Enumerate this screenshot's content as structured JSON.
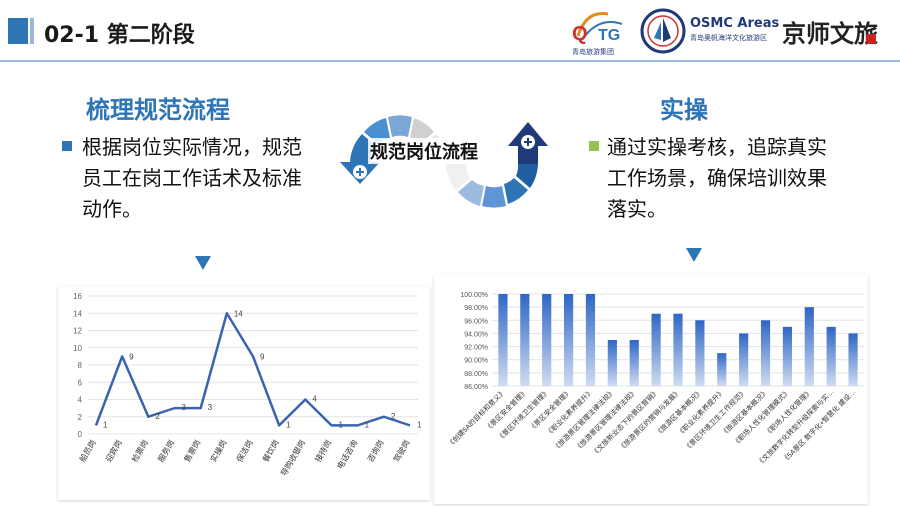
{
  "header": {
    "title": "02-1 第二阶段"
  },
  "logos": {
    "qtg_text": "青岛旅游集团",
    "osmc_title": "OSMC Areas",
    "osmc_sub": "青岛奥帆海洋文化旅游区",
    "jingshi": "京师文旅"
  },
  "left": {
    "heading": "梳理规范流程",
    "text": "根据岗位实际情况，规范员工在岗工作话术及标准动作。"
  },
  "right": {
    "heading": "实操",
    "text": "通过实操考核，追踪真实工作场景，确保培训效果落实。"
  },
  "flow": {
    "label": "规范岗位流程"
  },
  "colors": {
    "accent": "#2e75b6",
    "green": "#92c353",
    "line": "#3a63b0"
  },
  "icons": {
    "left_bullet": "square-bullet-icon",
    "right_bullet": "square-bullet-icon",
    "flow": "circular-flow-arrows-icon"
  },
  "chart_data": [
    {
      "type": "line",
      "categories": [
        "船员岗",
        "迎宾岗",
        "检票岗",
        "服务岗",
        "售票岗",
        "实操岗",
        "保洁岗",
        "餐饮岗",
        "导购收银岗",
        "接待岗",
        "电话咨询",
        "咨询岗",
        "驾驶岗"
      ],
      "values": [
        1,
        9,
        2,
        3,
        3,
        14,
        9,
        1,
        4,
        1,
        1,
        2,
        1
      ],
      "ylim": [
        0,
        16
      ],
      "yticks": [
        "0",
        "2",
        "4",
        "6",
        "8",
        "10",
        "12",
        "14",
        "16"
      ],
      "grid": true
    },
    {
      "type": "bar",
      "categories": [
        "《创建5A的目标和意义》",
        "《景区安全管理》",
        "《景区环境卫生管理》",
        "《景区安全管理》",
        "《职业化素养提升》",
        "《旅游景区管理法律法规》",
        "《旅游景区管理法律法规》",
        "《文旅新业态下的景区营销》",
        "《旅游景区的营销与发展》",
        "《旅游区基本概况》",
        "《职业化素养提升》",
        "《景区环境卫生工作规范》",
        "《旅游区基本概况》",
        "《职场人性化管理模式》",
        "《职场人性化管理》",
        "《文旅数字化转型升级探索与实…",
        "《5A景区 数字化+智慧化 建设…"
      ],
      "values": [
        100.0,
        100.0,
        100.0,
        100.0,
        100.0,
        93.0,
        93.0,
        97.0,
        97.0,
        96.0,
        91.0,
        94.0,
        96.0,
        95.0,
        98.0,
        95.0,
        94.0
      ],
      "ylim": [
        86.0,
        100.0
      ],
      "yticks": [
        "86.00%",
        "88.00%",
        "90.00%",
        "92.00%",
        "94.00%",
        "96.00%",
        "98.00%",
        "100.00%"
      ],
      "grid": true
    }
  ]
}
